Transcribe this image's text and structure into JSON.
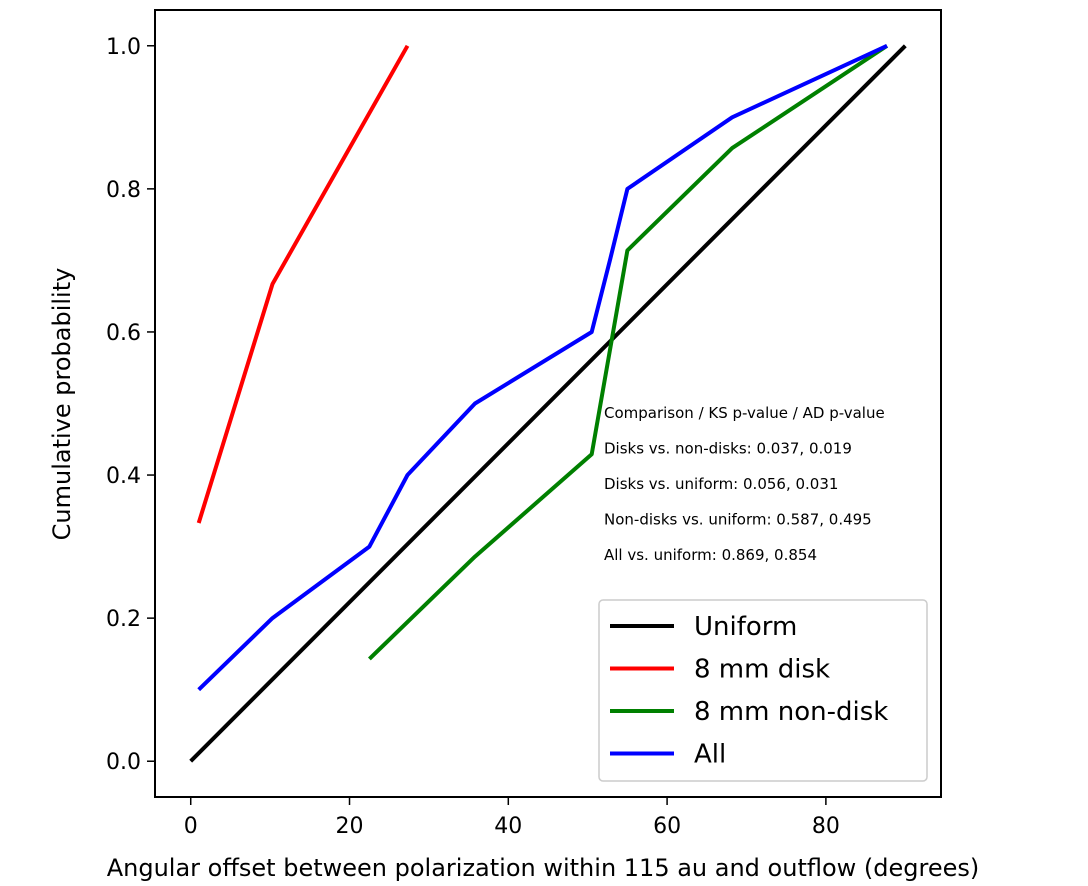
{
  "chart_data": {
    "type": "line",
    "xlabel": "Angular offset between polarization within 115 au and outflow (degrees)",
    "ylabel": "Cumulative probability",
    "xlim": [
      -4.5,
      94.5
    ],
    "ylim": [
      -0.05,
      1.05
    ],
    "x_ticks": [
      0,
      20,
      40,
      60,
      80
    ],
    "y_ticks": [
      0.0,
      0.2,
      0.4,
      0.6,
      0.8,
      1.0
    ],
    "x_tick_labels": [
      "0",
      "20",
      "40",
      "60",
      "80"
    ],
    "y_tick_labels": [
      "0.0",
      "0.2",
      "0.4",
      "0.6",
      "0.8",
      "1.0"
    ],
    "grid": false,
    "legend_position": "lower-right",
    "series": [
      {
        "name": "Uniform",
        "color": "#000000",
        "x": [
          0,
          90
        ],
        "y": [
          0.0,
          1.0
        ]
      },
      {
        "name": "8 mm disk",
        "color": "#ff0000",
        "x": [
          1.0,
          10.3,
          27.3
        ],
        "y": [
          0.333,
          0.667,
          1.0
        ]
      },
      {
        "name": "8 mm non-disk",
        "color": "#008000",
        "x": [
          22.5,
          35.8,
          50.5,
          55.0,
          68.2,
          87.7
        ],
        "y": [
          0.143,
          0.286,
          0.429,
          0.714,
          0.857,
          1.0
        ]
      },
      {
        "name": "All",
        "color": "#0000ff",
        "x": [
          1.0,
          10.3,
          22.5,
          27.3,
          35.8,
          50.5,
          52.8,
          55.0,
          68.2,
          87.7
        ],
        "y": [
          0.1,
          0.2,
          0.3,
          0.4,
          0.5,
          0.6,
          0.7,
          0.8,
          0.9,
          1.0
        ]
      }
    ],
    "annotations": [
      "Comparison / KS p-value / AD p-value",
      "Disks vs. non-disks: 0.037, 0.019",
      "Disks vs. uniform: 0.056, 0.031",
      "Non-disks vs. uniform: 0.587, 0.495",
      "All vs. uniform: 0.869, 0.854"
    ]
  }
}
